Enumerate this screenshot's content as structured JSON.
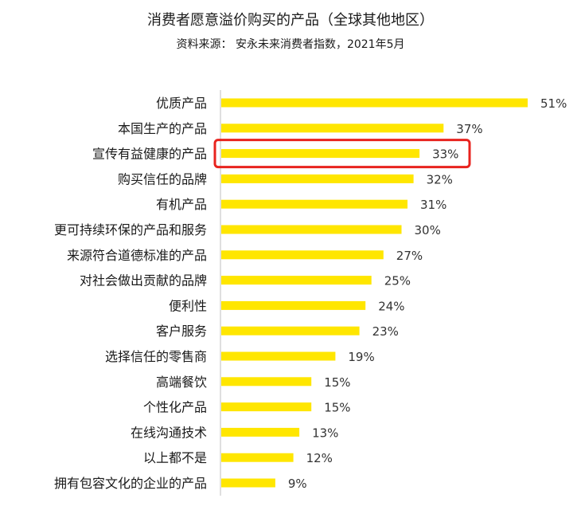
{
  "chart_data": {
    "type": "bar",
    "orientation": "horizontal",
    "title": "消费者愿意溢价购买的产品（全球其他地区）",
    "subtitle": "资料来源： 安永未来消费者指数，2021年5月",
    "categories": [
      "优质产品",
      "本国生产的产品",
      "宣传有益健康的产品",
      "购买信任的品牌",
      "有机产品",
      "更可持续环保的产品和服务",
      "来源符合道德标准的产品",
      "对社会做出贡献的品牌",
      "便利性",
      "客户服务",
      "选择信任的零售商",
      "高端餐饮",
      "个性化产品",
      "在线沟通技术",
      "以上都不是",
      "拥有包容文化的企业的产品"
    ],
    "values": [
      51,
      37,
      33,
      32,
      31,
      30,
      27,
      25,
      24,
      23,
      19,
      15,
      15,
      13,
      12,
      9
    ],
    "value_labels": [
      "51%",
      "37%",
      "33%",
      "32%",
      "31%",
      "30%",
      "27%",
      "25%",
      "24%",
      "23%",
      "19%",
      "15%",
      "15%",
      "13%",
      "12%",
      "9%"
    ],
    "xlim": [
      0,
      51
    ],
    "grid": false,
    "legend": "none",
    "highlighted_category_index": 2,
    "colors": {
      "bar": "#FFE600",
      "highlight_box": "#E8231E",
      "axis": "#bfbfbf"
    }
  }
}
